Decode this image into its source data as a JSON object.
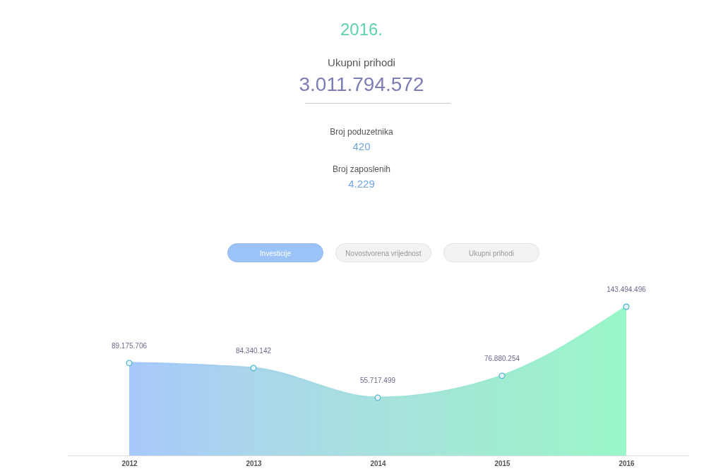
{
  "chart_data": {
    "type": "area",
    "title": "2016.",
    "annotations": [
      "Ukupni prihodi",
      "3.011.794.572",
      "Broj poduzetnika",
      "420",
      "Broj zaposlenih",
      "4.229",
      "Investicije",
      "Novostvorena vrijednost",
      "Ukupni prihodi"
    ],
    "categories": [
      "2012",
      "2013",
      "2014",
      "2015",
      "2016"
    ],
    "series": [
      {
        "values": [
          89175706,
          84340142,
          55717499,
          76880254,
          143494496
        ],
        "value_labels": [
          "89.175.706",
          "84.340.142",
          "55.717.499",
          "76.880.254",
          "143.494.496"
        ],
        "colors": [
          "#a3c6fb",
          "#a6d4ea",
          "#a2e0dc",
          "#9ceacf",
          "#95f7c6"
        ]
      }
    ],
    "marker": "circle",
    "line_style": "solid"
  }
}
